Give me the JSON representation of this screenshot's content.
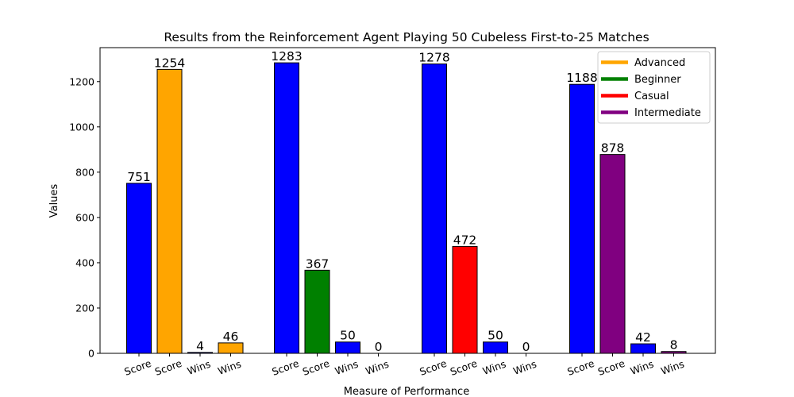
{
  "chart_data": {
    "type": "bar",
    "title": "Results from the Reinforcement Agent Playing 50 Cubeless First-to-25 Matches",
    "xlabel": "Measure of Performance",
    "ylabel": "Values",
    "ylim": [
      0,
      1350
    ],
    "yticks": [
      0,
      200,
      400,
      600,
      800,
      1000,
      1200
    ],
    "grid": false,
    "legend_position": "top-right",
    "legend": [
      {
        "label": "Advanced",
        "color": "#ffa500"
      },
      {
        "label": "Beginner",
        "color": "#008000"
      },
      {
        "label": "Casual",
        "color": "#ff0000"
      },
      {
        "label": "Intermediate",
        "color": "#800080"
      }
    ],
    "groups": [
      {
        "bars": [
          {
            "label": "Score",
            "value": 751,
            "color": "#0000ff"
          },
          {
            "label": "Score",
            "value": 1254,
            "color": "#ffa500"
          },
          {
            "label": "Wins",
            "value": 4,
            "color": "#0000ff"
          },
          {
            "label": "Wins",
            "value": 46,
            "color": "#ffa500"
          }
        ]
      },
      {
        "bars": [
          {
            "label": "Score",
            "value": 1283,
            "color": "#0000ff"
          },
          {
            "label": "Score",
            "value": 367,
            "color": "#008000"
          },
          {
            "label": "Wins",
            "value": 50,
            "color": "#0000ff"
          },
          {
            "label": "Wins",
            "value": 0,
            "color": "#008000"
          }
        ]
      },
      {
        "bars": [
          {
            "label": "Score",
            "value": 1278,
            "color": "#0000ff"
          },
          {
            "label": "Score",
            "value": 472,
            "color": "#ff0000"
          },
          {
            "label": "Wins",
            "value": 50,
            "color": "#0000ff"
          },
          {
            "label": "Wins",
            "value": 0,
            "color": "#ff0000"
          }
        ]
      },
      {
        "bars": [
          {
            "label": "Score",
            "value": 1188,
            "color": "#0000ff"
          },
          {
            "label": "Score",
            "value": 878,
            "color": "#800080"
          },
          {
            "label": "Wins",
            "value": 42,
            "color": "#0000ff"
          },
          {
            "label": "Wins",
            "value": 8,
            "color": "#800080"
          }
        ]
      }
    ]
  }
}
